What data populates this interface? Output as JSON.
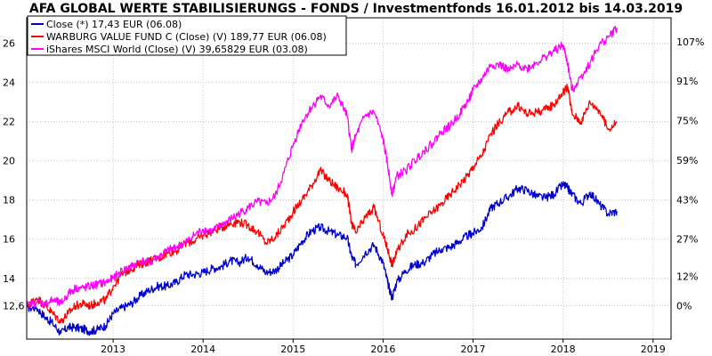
{
  "chart_data": {
    "type": "line",
    "title": "AFA GLOBAL WERTE STABILISIERUNGS - FONDS / Investmentfonds 16.01.2012 bis 14.03.2019",
    "x_range": [
      2012.04,
      2019.2
    ],
    "x_tick_values": [
      2013,
      2014,
      2015,
      2016,
      2017,
      2018,
      2019
    ],
    "x_tick_labels": [
      "2013",
      "2014",
      "2015",
      "2016",
      "2017",
      "2018",
      "2019"
    ],
    "y_left_range": [
      10.9,
      27.3
    ],
    "y_left_ticks": [
      12.6,
      14,
      16,
      18,
      20,
      22,
      24,
      26
    ],
    "y_left_tick_labels": [
      "12,6",
      "14",
      "16",
      "18",
      "20",
      "22",
      "24",
      "26"
    ],
    "y_right_ticks": [
      0,
      12,
      27,
      43,
      59,
      75,
      91,
      107
    ],
    "y_right_tick_labels": [
      "0%",
      "12%",
      "27%",
      "43%",
      "59%",
      "75%",
      "91%",
      "107%"
    ],
    "y_right_base": 12.6,
    "grid": true,
    "legend_placement": "top-left",
    "series": [
      {
        "name": "Close (*) 17,43 EUR (06.08)",
        "color": "#0000cc",
        "x": [
          2012.04,
          2012.15,
          2012.25,
          2012.33,
          2012.42,
          2012.5,
          2012.58,
          2012.67,
          2012.75,
          2012.83,
          2012.92,
          2013.0,
          2013.1,
          2013.2,
          2013.3,
          2013.4,
          2013.5,
          2013.6,
          2013.7,
          2013.8,
          2013.9,
          2014.0,
          2014.1,
          2014.2,
          2014.3,
          2014.4,
          2014.5,
          2014.6,
          2014.7,
          2014.8,
          2014.9,
          2015.0,
          2015.1,
          2015.2,
          2015.3,
          2015.4,
          2015.5,
          2015.6,
          2015.65,
          2015.7,
          2015.8,
          2015.9,
          2016.0,
          2016.05,
          2016.1,
          2016.15,
          2016.25,
          2016.35,
          2016.45,
          2016.55,
          2016.65,
          2016.75,
          2016.85,
          2016.95,
          2017.0,
          2017.1,
          2017.2,
          2017.3,
          2017.4,
          2017.5,
          2017.6,
          2017.7,
          2017.8,
          2017.9,
          2018.0,
          2018.05,
          2018.1,
          2018.2,
          2018.3,
          2018.4,
          2018.5,
          2018.6
        ],
        "y": [
          12.5,
          12.5,
          12.0,
          11.7,
          11.2,
          11.5,
          11.5,
          11.4,
          11.3,
          11.4,
          11.6,
          12.2,
          12.5,
          12.7,
          13.1,
          13.4,
          13.6,
          13.6,
          13.8,
          14.2,
          14.2,
          14.3,
          14.5,
          14.6,
          14.9,
          14.8,
          15.1,
          14.7,
          14.3,
          14.4,
          14.8,
          15.2,
          15.9,
          16.4,
          16.6,
          16.4,
          16.2,
          16.1,
          15.1,
          14.7,
          15.3,
          15.7,
          14.8,
          13.8,
          13.0,
          13.8,
          14.4,
          14.7,
          14.8,
          15.2,
          15.5,
          15.6,
          15.9,
          16.2,
          16.3,
          16.6,
          17.6,
          17.9,
          18.2,
          18.6,
          18.5,
          18.2,
          18.1,
          18.3,
          18.8,
          18.6,
          18.3,
          17.8,
          18.4,
          17.8,
          17.3,
          17.43
        ]
      },
      {
        "name": "WARBURG VALUE FUND C (Close) (V) 189,77 EUR (06.08)",
        "color": "#ff0000",
        "x": [
          2012.04,
          2012.15,
          2012.25,
          2012.33,
          2012.42,
          2012.5,
          2012.58,
          2012.67,
          2012.75,
          2012.83,
          2012.92,
          2013.0,
          2013.1,
          2013.2,
          2013.3,
          2013.4,
          2013.5,
          2013.6,
          2013.7,
          2013.8,
          2013.9,
          2014.0,
          2014.1,
          2014.2,
          2014.3,
          2014.4,
          2014.5,
          2014.6,
          2014.7,
          2014.8,
          2014.9,
          2015.0,
          2015.1,
          2015.2,
          2015.3,
          2015.4,
          2015.5,
          2015.6,
          2015.65,
          2015.7,
          2015.8,
          2015.9,
          2016.0,
          2016.05,
          2016.1,
          2016.15,
          2016.25,
          2016.35,
          2016.45,
          2016.55,
          2016.65,
          2016.75,
          2016.85,
          2016.95,
          2017.0,
          2017.1,
          2017.2,
          2017.3,
          2017.4,
          2017.5,
          2017.6,
          2017.7,
          2017.8,
          2017.9,
          2018.0,
          2018.05,
          2018.1,
          2018.2,
          2018.3,
          2018.4,
          2018.5,
          2018.6
        ],
        "y": [
          12.6,
          13.0,
          12.6,
          12.2,
          11.8,
          12.2,
          12.6,
          12.7,
          12.6,
          12.8,
          12.9,
          13.6,
          14.2,
          14.5,
          14.7,
          14.9,
          15.0,
          15.3,
          15.4,
          15.8,
          15.9,
          16.2,
          16.4,
          16.6,
          16.8,
          16.9,
          16.7,
          16.4,
          15.8,
          16.1,
          16.7,
          17.4,
          18.0,
          18.7,
          19.5,
          19.0,
          18.6,
          18.3,
          16.8,
          16.3,
          17.1,
          17.6,
          16.2,
          15.5,
          14.7,
          15.3,
          16.2,
          16.5,
          17.0,
          17.4,
          17.8,
          18.3,
          18.8,
          19.3,
          19.7,
          20.3,
          21.4,
          22.0,
          22.5,
          22.8,
          22.4,
          22.5,
          22.6,
          22.9,
          23.5,
          23.8,
          22.4,
          22.0,
          23.0,
          22.6,
          21.6,
          21.98
        ]
      },
      {
        "name": "iShares MSCI World (Close) (V) 39,65829 EUR (03.08)",
        "color": "#ff00ff",
        "x": [
          2012.04,
          2012.15,
          2012.25,
          2012.33,
          2012.42,
          2012.5,
          2012.58,
          2012.67,
          2012.75,
          2012.83,
          2012.92,
          2013.0,
          2013.1,
          2013.2,
          2013.3,
          2013.4,
          2013.5,
          2013.6,
          2013.7,
          2013.8,
          2013.9,
          2014.0,
          2014.1,
          2014.2,
          2014.3,
          2014.4,
          2014.5,
          2014.6,
          2014.7,
          2014.8,
          2014.9,
          2015.0,
          2015.1,
          2015.2,
          2015.3,
          2015.4,
          2015.5,
          2015.6,
          2015.65,
          2015.7,
          2015.8,
          2015.9,
          2016.0,
          2016.05,
          2016.1,
          2016.15,
          2016.25,
          2016.35,
          2016.45,
          2016.55,
          2016.65,
          2016.75,
          2016.85,
          2016.95,
          2017.0,
          2017.1,
          2017.2,
          2017.3,
          2017.4,
          2017.5,
          2017.6,
          2017.7,
          2017.8,
          2017.9,
          2018.0,
          2018.05,
          2018.1,
          2018.2,
          2018.3,
          2018.4,
          2018.5,
          2018.6
        ],
        "y": [
          12.6,
          12.8,
          12.7,
          12.9,
          12.7,
          13.2,
          13.5,
          13.5,
          13.6,
          13.7,
          13.8,
          14.0,
          14.4,
          14.6,
          14.9,
          14.8,
          15.1,
          15.4,
          15.6,
          15.8,
          16.2,
          16.5,
          16.4,
          16.7,
          17.0,
          17.3,
          17.6,
          17.9,
          17.8,
          18.2,
          19.4,
          20.8,
          22.0,
          22.7,
          23.3,
          22.8,
          23.3,
          22.3,
          20.6,
          21.3,
          22.3,
          22.5,
          21.1,
          19.8,
          18.3,
          19.2,
          19.5,
          20.0,
          20.5,
          20.9,
          21.5,
          21.8,
          22.4,
          23.1,
          23.6,
          24.2,
          24.9,
          24.9,
          24.6,
          24.9,
          24.7,
          25.0,
          25.3,
          25.6,
          25.9,
          25.0,
          23.6,
          24.3,
          25.0,
          25.9,
          26.3,
          26.8
        ]
      }
    ]
  }
}
